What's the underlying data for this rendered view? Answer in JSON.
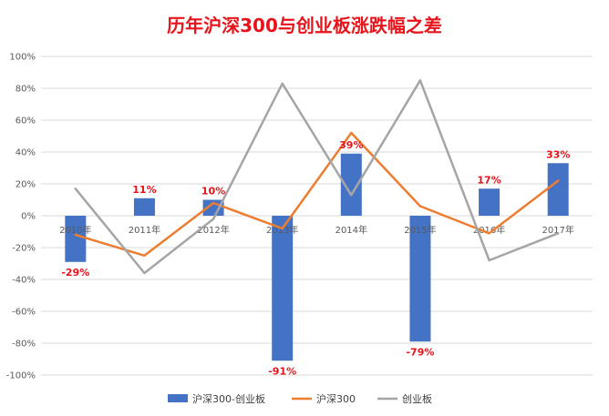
{
  "chart_data": {
    "type": "bar+line",
    "title": "历年沪深300与创业板涨跌幅之差",
    "categories": [
      "2010年",
      "2011年",
      "2012年",
      "2013年",
      "2014年",
      "2015年",
      "2016年",
      "2017年"
    ],
    "y_ticks": [
      "100%",
      "80%",
      "60%",
      "40%",
      "20%",
      "0%",
      "-20%",
      "-40%",
      "-60%",
      "-80%",
      "-100%"
    ],
    "ylim": [
      -100,
      100
    ],
    "grid": true,
    "legend_position": "bottom",
    "series": [
      {
        "name": "沪深300-创业板",
        "type": "bar",
        "color": "#4472c4",
        "values": [
          -29,
          11,
          10,
          -91,
          39,
          -79,
          17,
          33
        ],
        "labels": [
          "-29%",
          "11%",
          "10%",
          "-91%",
          "39%",
          "-79%",
          "17%",
          "33%"
        ]
      },
      {
        "name": "沪深300",
        "type": "line",
        "color": "#ed7d31",
        "values": [
          -12,
          -25,
          8,
          -8,
          52,
          6,
          -11,
          22
        ]
      },
      {
        "name": "创业板",
        "type": "line",
        "color": "#a5a5a5",
        "values": [
          17,
          -36,
          -2,
          83,
          13,
          85,
          -28,
          -11
        ]
      }
    ]
  }
}
